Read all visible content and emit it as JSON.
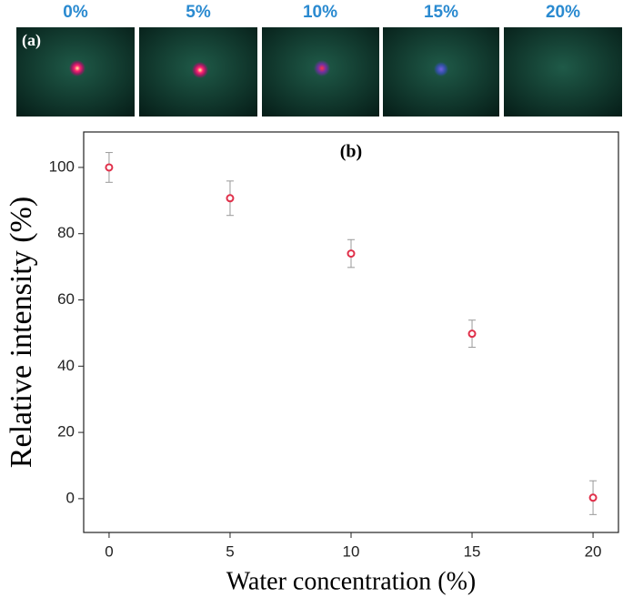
{
  "images": {
    "labels": [
      "0%",
      "5%",
      "10%",
      "15%",
      "20%"
    ],
    "panel_label": "(a)"
  },
  "chart_data": {
    "type": "scatter",
    "annotation": "(b)",
    "x_label": "Water concentration (%)",
    "y_label": "Relative intensity (%)",
    "x": [
      0,
      5,
      10,
      15,
      20
    ],
    "values": [
      100,
      90.7,
      74,
      49.8,
      0.3
    ],
    "errors": [
      4.5,
      5.2,
      4.2,
      4.1,
      5.1
    ],
    "color": "#e0304a",
    "error_color": "#999999",
    "xlim": [
      -1.05,
      21.05
    ],
    "xticks": [
      0,
      5,
      10,
      15,
      20
    ],
    "ylim": [
      -10.2,
      110.7
    ],
    "yticks": [
      0,
      20,
      40,
      60,
      80,
      100
    ]
  }
}
